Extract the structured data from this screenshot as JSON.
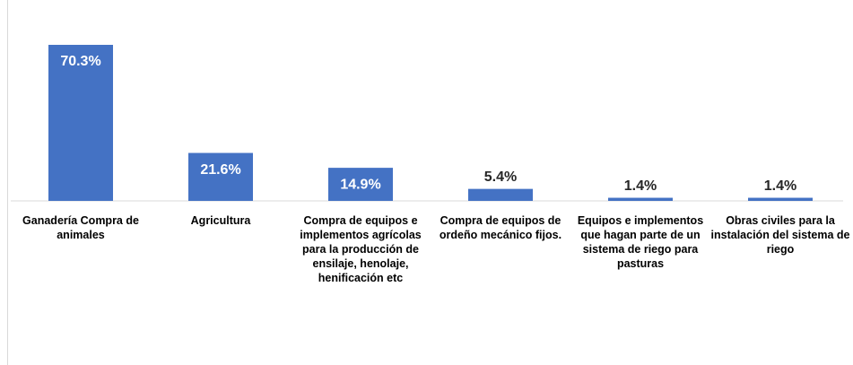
{
  "chart_data": {
    "type": "bar",
    "categories": [
      "Ganadería Compra de animales",
      "Agricultura",
      "Compra de equipos e implementos agrícolas para la producción de ensilaje, henolaje, henificación etc",
      "Compra de equipos de ordeño mecánico fijos.",
      "Equipos e implementos que hagan parte de un sistema de riego para pasturas",
      "Obras civiles para la instalación del sistema de riego"
    ],
    "values": [
      70.3,
      21.6,
      14.9,
      5.4,
      1.4,
      1.4
    ],
    "value_labels": [
      "70.3%",
      "21.6%",
      "14.9%",
      "5.4%",
      "1.4%",
      "1.4%"
    ],
    "color": "#4472c4"
  }
}
